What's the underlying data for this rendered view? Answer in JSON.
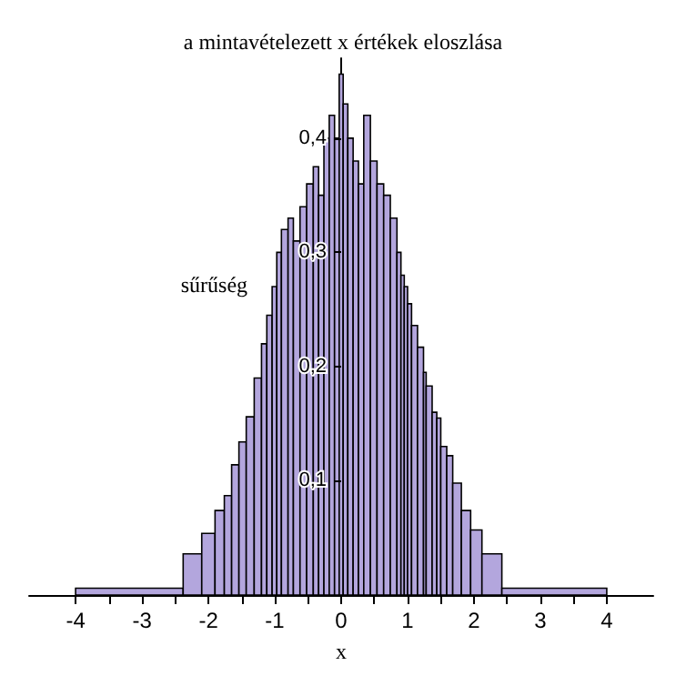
{
  "chart_data": {
    "type": "histogram",
    "title": "a mintavételezett x értékek eloszlása",
    "xlabel": "x",
    "ylabel": "sűrűség",
    "bins": [
      -4,
      -2.38,
      -2.1,
      -1.9,
      -1.76,
      -1.65,
      -1.54,
      -1.43,
      -1.31,
      -1.2,
      -1.12,
      -1.04,
      -0.97,
      -0.9,
      -0.8,
      -0.72,
      -0.62,
      -0.52,
      -0.42,
      -0.34,
      -0.26,
      -0.18,
      -0.1,
      -0.03,
      0.03,
      0.1,
      0.18,
      0.26,
      0.34,
      0.44,
      0.54,
      0.64,
      0.74,
      0.84,
      0.9,
      0.95,
      1,
      1.06,
      1.15,
      1.24,
      1.28,
      1.37,
      1.44,
      1.5,
      1.59,
      1.68,
      1.81,
      1.95,
      2.12,
      2.42,
      4
    ],
    "values": [
      0.006,
      0.036,
      0.054,
      0.074,
      0.087,
      0.114,
      0.134,
      0.156,
      0.19,
      0.22,
      0.245,
      0.27,
      0.3,
      0.32,
      0.33,
      0.31,
      0.34,
      0.36,
      0.375,
      0.35,
      0.4,
      0.42,
      0.4,
      0.456,
      0.43,
      0.4,
      0.38,
      0.36,
      0.42,
      0.38,
      0.36,
      0.35,
      0.33,
      0.3,
      0.28,
      0.27,
      0.255,
      0.236,
      0.217,
      0.195,
      0.183,
      0.16,
      0.155,
      0.13,
      0.122,
      0.098,
      0.074,
      0.057,
      0.036,
      0.006
    ],
    "color": "#b3a6dd",
    "xlim": [
      -4.7,
      4.7
    ],
    "xticks": [
      -4,
      {
        "value": -3.5,
        "label": null
      },
      -3,
      {
        "value": -2.5,
        "label": null
      },
      -2,
      {
        "value": -1.5,
        "label": null
      },
      -1,
      {
        "value": -0.5,
        "label": null
      },
      0,
      {
        "value": 0.5,
        "label": null
      },
      1,
      {
        "value": 1.5,
        "label": null
      },
      2,
      {
        "value": 2.5,
        "label": null
      },
      3,
      {
        "value": 3.5,
        "label": null
      },
      4
    ],
    "ylim": [
      0,
      0.47
    ],
    "yticks": [
      {
        "value": 0.1,
        "label": "0,1"
      },
      {
        "value": 0.2,
        "label": "0,2"
      },
      {
        "value": 0.3,
        "label": "0,3"
      },
      {
        "value": 0.4,
        "label": "0,4"
      }
    ],
    "grid": false
  }
}
